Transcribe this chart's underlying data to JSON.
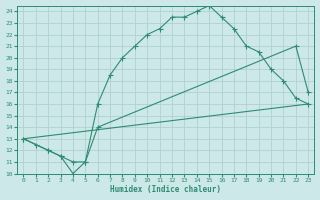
{
  "xlabel": "Humidex (Indice chaleur)",
  "line_color": "#2e8b74",
  "bg_color": "#cce8e8",
  "grid_color": "#b0d0d0",
  "xlim": [
    -0.5,
    23.5
  ],
  "ylim": [
    10,
    24.5
  ],
  "xticks": [
    0,
    1,
    2,
    3,
    4,
    5,
    6,
    7,
    8,
    9,
    10,
    11,
    12,
    13,
    14,
    15,
    16,
    17,
    18,
    19,
    20,
    21,
    22,
    23
  ],
  "yticks": [
    10,
    11,
    12,
    13,
    14,
    15,
    16,
    17,
    18,
    19,
    20,
    21,
    22,
    23,
    24
  ],
  "line1_x": [
    0,
    1,
    2,
    3,
    4,
    5,
    6,
    7,
    8,
    9,
    10,
    11,
    12,
    13,
    14,
    15,
    16,
    17,
    18,
    19,
    20,
    21,
    22,
    23
  ],
  "line1_y": [
    13,
    12.5,
    12,
    11.5,
    10,
    11,
    16,
    18.5,
    20,
    21,
    22,
    22.5,
    23.5,
    23.5,
    24,
    24.5,
    23.5,
    22.5,
    21,
    20.5,
    19,
    18,
    16.5,
    16
  ],
  "line2_x": [
    0,
    2,
    3,
    4,
    5,
    6,
    22,
    23
  ],
  "line2_y": [
    13,
    12,
    11.5,
    11,
    11,
    14,
    21,
    17
  ],
  "line3_x": [
    0,
    23
  ],
  "line3_y": [
    13,
    16
  ]
}
